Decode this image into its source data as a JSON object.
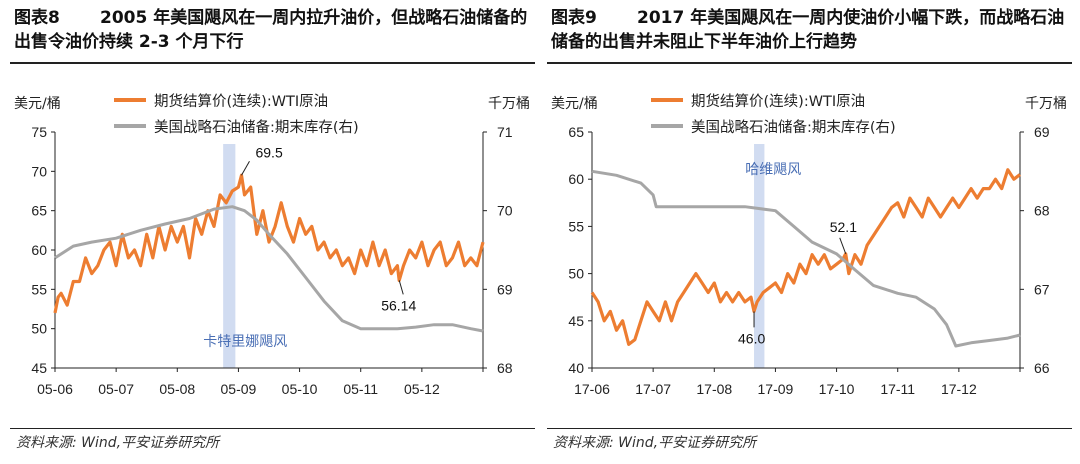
{
  "charts": [
    {
      "figure_label": "图表8",
      "title_text": "2005 年美国飓风在一周内拉升油价，但战略石油储备的出售令油价持续 2-3 个月下行",
      "source": "资料来源: Wind,平安证券研究所",
      "left_unit": "美元/桶",
      "right_unit": "千万桶",
      "band_label": "卡特里娜飓风",
      "annotations": [
        {
          "text": "69.5",
          "x": 3.05,
          "y": 69.5
        },
        {
          "text": "56.14",
          "x": 5.63,
          "y": 56.14
        }
      ]
    },
    {
      "figure_label": "图表9",
      "title_text": "2017 年美国飓风在一周内使油价小幅下跌，而战略石油储备的出售并未阻止下半年油价上行趋势",
      "source": "资料来源: Wind,平安证券研究所",
      "left_unit": "美元/桶",
      "right_unit": "千万桶",
      "band_label": "哈维飓风",
      "annotations": [
        {
          "text": "52.1",
          "x": 4.15,
          "y": 52.1
        },
        {
          "text": "46.0",
          "x": 2.65,
          "y": 46.0
        }
      ]
    }
  ],
  "chart_data": [
    {
      "type": "line",
      "categories": [
        "05-06",
        "05-07",
        "05-08",
        "05-09",
        "05-10",
        "05-11",
        "05-12"
      ],
      "ylim": [
        45,
        75
      ],
      "y_ticks": [
        45,
        50,
        55,
        60,
        65,
        70,
        75
      ],
      "y2lim": [
        68,
        71
      ],
      "y2_ticks": [
        68,
        69,
        70,
        71
      ],
      "legend_position": "top-center",
      "band": {
        "x_start": 2.75,
        "x_end": 2.95
      },
      "series": [
        {
          "name": "期货结算价(连续):WTI原油",
          "axis": "left",
          "color": "#ed7d31",
          "x": [
            0.0,
            0.05,
            0.1,
            0.2,
            0.3,
            0.4,
            0.5,
            0.6,
            0.7,
            0.8,
            0.9,
            1.0,
            1.1,
            1.2,
            1.3,
            1.4,
            1.5,
            1.6,
            1.7,
            1.8,
            1.9,
            2.0,
            2.1,
            2.2,
            2.3,
            2.4,
            2.5,
            2.6,
            2.7,
            2.8,
            2.9,
            3.0,
            3.05,
            3.1,
            3.2,
            3.3,
            3.4,
            3.5,
            3.6,
            3.7,
            3.8,
            3.9,
            4.0,
            4.1,
            4.2,
            4.3,
            4.4,
            4.5,
            4.6,
            4.7,
            4.8,
            4.9,
            5.0,
            5.1,
            5.2,
            5.3,
            5.4,
            5.5,
            5.6,
            5.63,
            5.7,
            5.8,
            5.9,
            6.0,
            6.1,
            6.2,
            6.3,
            6.4,
            6.5,
            6.6,
            6.7,
            6.8,
            6.9,
            7.0
          ],
          "y": [
            52,
            54,
            54.5,
            53,
            56,
            56,
            59,
            57,
            58,
            60,
            61,
            58,
            62,
            59,
            60,
            58,
            62,
            59,
            63,
            60,
            63,
            61,
            63,
            59,
            64,
            62,
            65,
            63,
            67,
            66,
            67.5,
            68,
            69.5,
            67,
            68,
            62,
            65,
            61,
            63,
            66,
            63,
            61,
            64,
            62,
            63,
            60,
            61,
            59,
            60,
            58,
            59,
            57,
            60,
            58,
            61,
            58,
            60,
            57,
            58,
            56.14,
            58,
            60,
            59,
            61,
            58,
            60,
            61,
            58,
            59,
            61,
            58,
            59,
            58,
            61
          ]
        },
        {
          "name": "美国战略石油储备:期末库存(右)",
          "axis": "right",
          "color": "#a6a6a6",
          "x": [
            0.0,
            0.3,
            0.6,
            1.0,
            1.4,
            1.8,
            2.2,
            2.6,
            2.9,
            3.1,
            3.3,
            3.5,
            3.8,
            4.1,
            4.4,
            4.7,
            5.0,
            5.3,
            5.6,
            5.9,
            6.2,
            6.5,
            6.8,
            7.0
          ],
          "y": [
            69.4,
            69.55,
            69.6,
            69.65,
            69.75,
            69.83,
            69.9,
            70.02,
            70.05,
            70.0,
            69.88,
            69.7,
            69.45,
            69.15,
            68.85,
            68.6,
            68.5,
            68.5,
            68.5,
            68.52,
            68.55,
            68.55,
            68.5,
            68.47
          ]
        }
      ]
    },
    {
      "type": "line",
      "categories": [
        "17-06",
        "17-07",
        "17-08",
        "17-09",
        "17-10",
        "17-11",
        "17-12"
      ],
      "ylim": [
        40,
        65
      ],
      "y_ticks": [
        40,
        45,
        50,
        55,
        60,
        65
      ],
      "y2lim": [
        66,
        69
      ],
      "y2_ticks": [
        66,
        67,
        68,
        69
      ],
      "legend_position": "top-center",
      "band": {
        "x_start": 2.65,
        "x_end": 2.82
      },
      "series": [
        {
          "name": "期货结算价(连续):WTI原油",
          "axis": "left",
          "color": "#ed7d31",
          "x": [
            0.0,
            0.1,
            0.2,
            0.3,
            0.4,
            0.5,
            0.6,
            0.7,
            0.8,
            0.9,
            1.0,
            1.1,
            1.2,
            1.3,
            1.4,
            1.5,
            1.6,
            1.7,
            1.8,
            1.9,
            2.0,
            2.1,
            2.2,
            2.3,
            2.4,
            2.5,
            2.6,
            2.65,
            2.7,
            2.8,
            2.9,
            3.0,
            3.1,
            3.2,
            3.3,
            3.4,
            3.5,
            3.6,
            3.7,
            3.8,
            3.9,
            4.0,
            4.1,
            4.15,
            4.2,
            4.3,
            4.4,
            4.5,
            4.6,
            4.7,
            4.8,
            4.9,
            5.0,
            5.1,
            5.2,
            5.3,
            5.4,
            5.5,
            5.6,
            5.7,
            5.8,
            5.9,
            6.0,
            6.1,
            6.2,
            6.3,
            6.4,
            6.5,
            6.6,
            6.7,
            6.8,
            6.9,
            7.0
          ],
          "y": [
            48,
            47,
            45,
            46,
            44,
            45,
            42.5,
            43,
            45,
            47,
            46,
            45,
            47,
            45,
            47,
            48,
            49,
            50,
            49,
            48,
            49,
            47,
            48,
            47,
            48,
            47,
            47.5,
            46.0,
            47,
            48,
            48.5,
            49,
            48,
            50,
            49,
            51,
            50,
            52,
            51,
            52,
            50.5,
            51,
            51.5,
            52.1,
            50,
            52,
            51,
            53,
            54,
            55,
            56,
            57,
            57.5,
            56,
            58,
            57,
            56,
            58,
            57,
            56,
            57,
            58,
            57,
            58,
            59,
            58,
            59,
            59,
            60,
            59,
            61,
            60,
            60.5
          ]
        },
        {
          "name": "美国战略石油储备:期末库存(右)",
          "axis": "right",
          "color": "#a6a6a6",
          "x": [
            0.0,
            0.4,
            0.8,
            1.0,
            1.05,
            1.5,
            2.0,
            2.5,
            3.0,
            3.3,
            3.6,
            4.0,
            4.3,
            4.6,
            5.0,
            5.3,
            5.6,
            5.8,
            5.95,
            6.2,
            6.5,
            6.8,
            7.0
          ],
          "y": [
            68.5,
            68.45,
            68.35,
            68.2,
            68.05,
            68.05,
            68.05,
            68.05,
            68.0,
            67.8,
            67.6,
            67.45,
            67.25,
            67.05,
            66.95,
            66.9,
            66.75,
            66.55,
            66.28,
            66.32,
            66.35,
            66.38,
            66.42
          ]
        }
      ]
    }
  ]
}
